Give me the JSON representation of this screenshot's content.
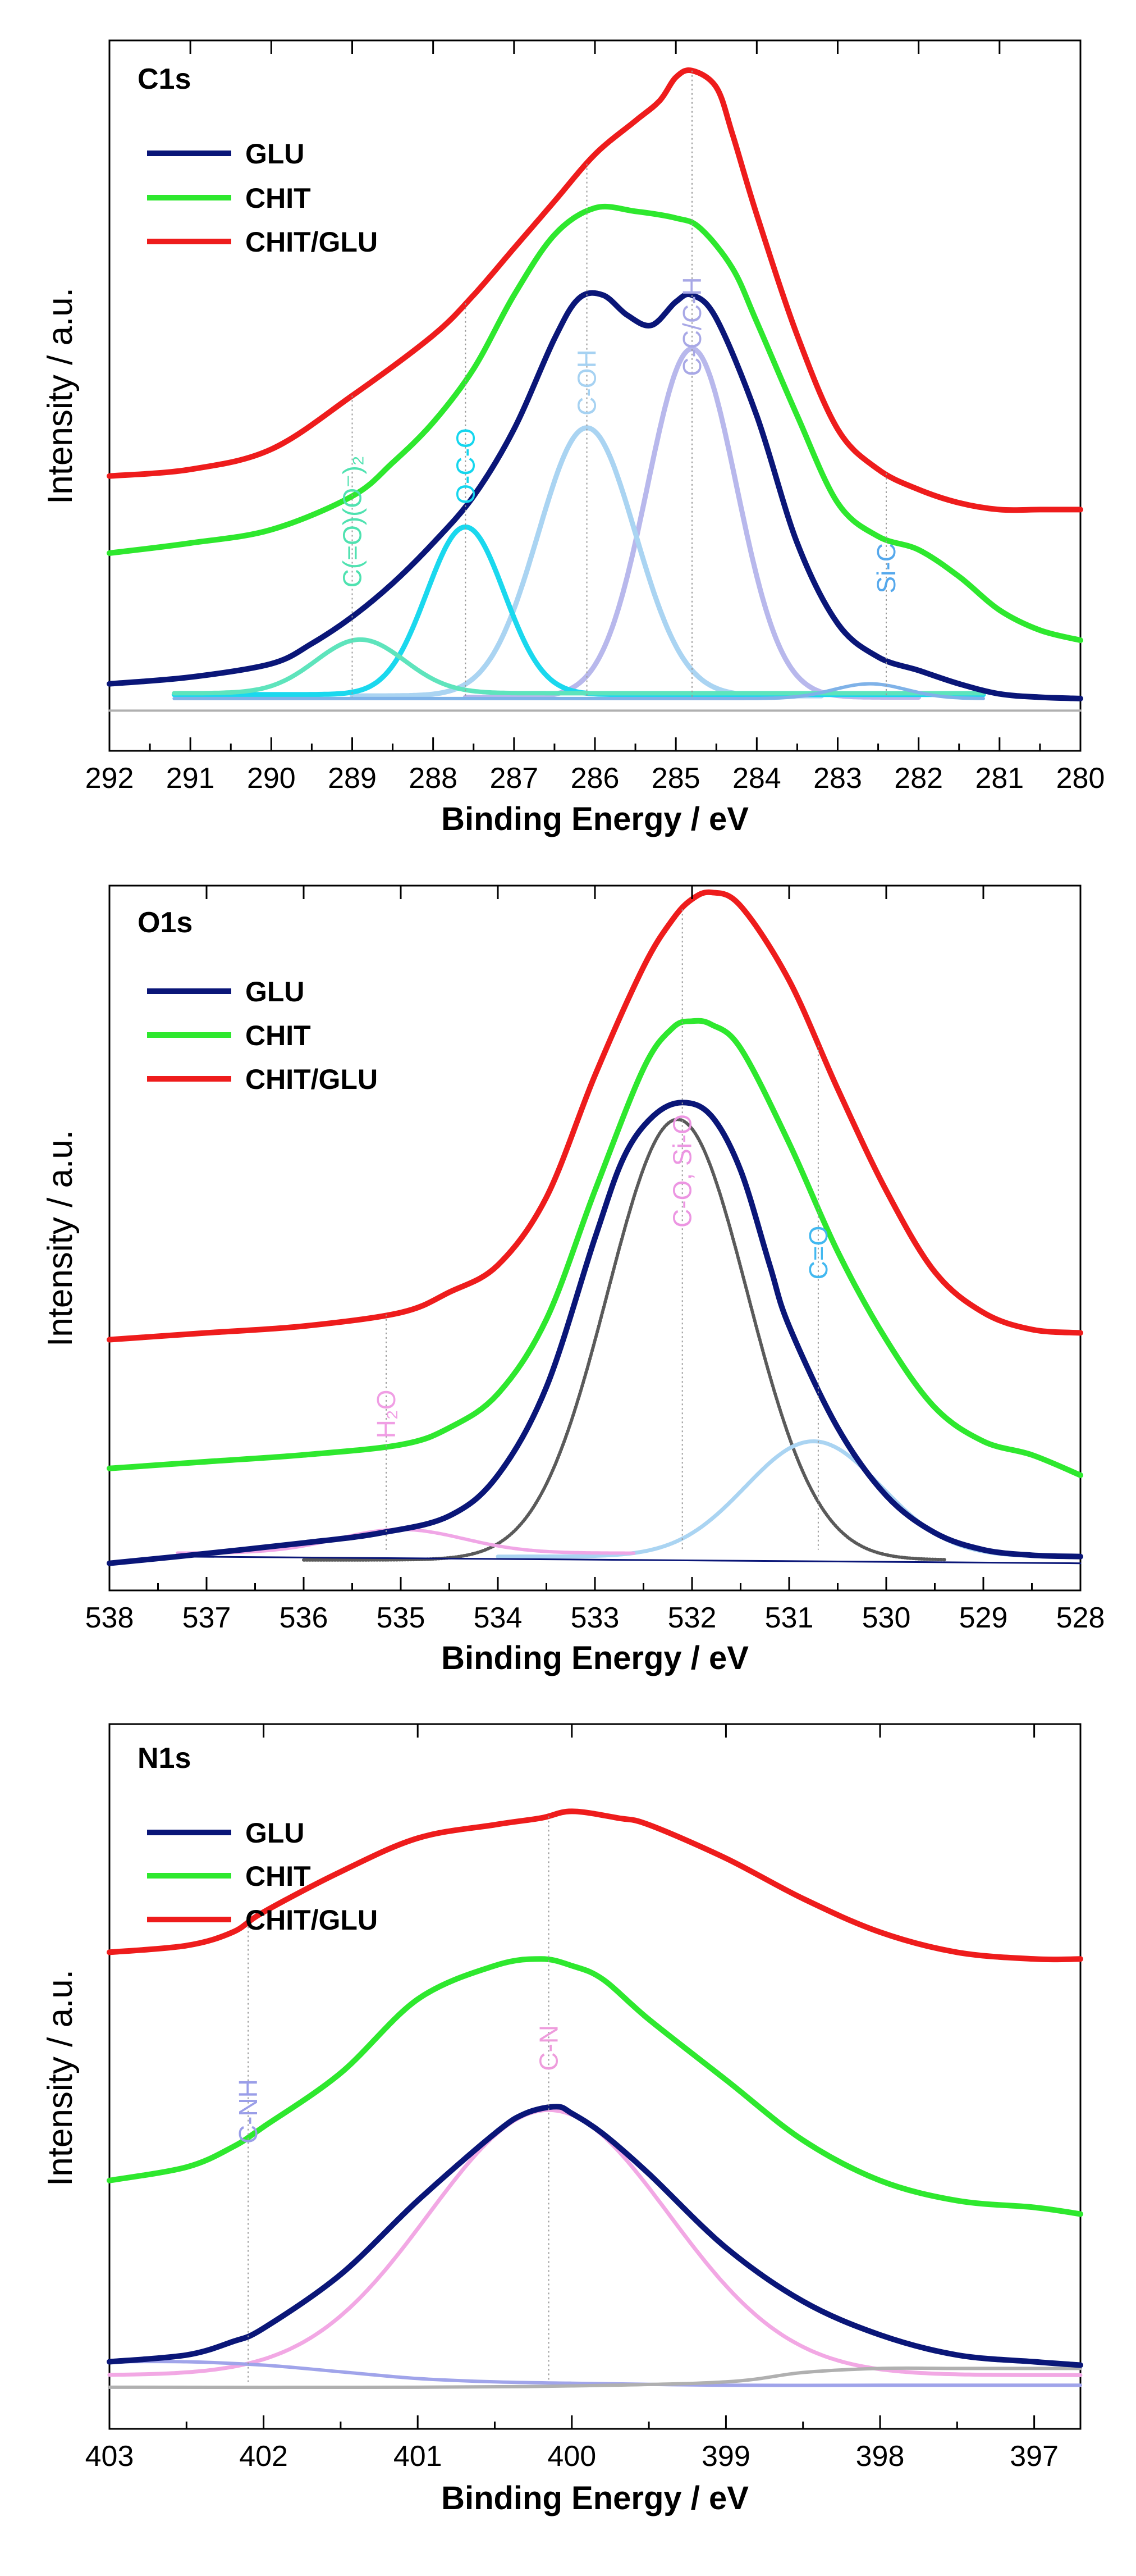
{
  "colors": {
    "glu": "#0a1678",
    "chit": "#2ee82e",
    "chit_glu": "#ee1c1c",
    "baseline_grey": "#b0b0b0"
  },
  "chart_data": [
    {
      "type": "line",
      "title": "C1s",
      "xlabel": "Binding Energy / eV",
      "ylabel": "Intensity / a.u.",
      "xlim": [
        292,
        280
      ],
      "ylim": [
        -0.06,
        1.0
      ],
      "x_ticks": [
        "292",
        "291",
        "290",
        "289",
        "288",
        "287",
        "286",
        "285",
        "284",
        "283",
        "282",
        "281",
        "280"
      ],
      "legend": [
        {
          "name": "GLU",
          "color": "#0a1678"
        },
        {
          "name": "CHIT",
          "color": "#2ee82e"
        },
        {
          "name": "CHIT/GLU",
          "color": "#ee1c1c"
        }
      ],
      "series": [
        {
          "name": "GLU",
          "color": "#0a1678",
          "width": 10,
          "x": [
            292,
            291,
            290,
            289.5,
            289,
            288.5,
            288,
            287.5,
            287,
            286.5,
            286.2,
            285.9,
            285.6,
            285.3,
            285,
            284.8,
            284.5,
            284,
            283.5,
            283,
            282.5,
            282,
            281.5,
            281,
            280.5,
            280
          ],
          "y": [
            0.04,
            0.05,
            0.07,
            0.1,
            0.14,
            0.19,
            0.25,
            0.32,
            0.42,
            0.555,
            0.615,
            0.62,
            0.59,
            0.575,
            0.61,
            0.62,
            0.585,
            0.44,
            0.25,
            0.13,
            0.08,
            0.06,
            0.04,
            0.025,
            0.02,
            0.018
          ]
        },
        {
          "name": "CHIT",
          "color": "#2ee82e",
          "width": 10,
          "x": [
            292,
            291,
            290,
            289,
            288.5,
            288,
            287.5,
            287,
            286.5,
            286,
            285.5,
            285,
            284.7,
            284.3,
            284,
            283.5,
            283,
            282.5,
            282,
            281.5,
            281,
            280.5,
            280
          ],
          "y": [
            0.235,
            0.25,
            0.27,
            0.32,
            0.37,
            0.43,
            0.51,
            0.62,
            0.71,
            0.75,
            0.745,
            0.735,
            0.72,
            0.66,
            0.58,
            0.44,
            0.31,
            0.26,
            0.24,
            0.2,
            0.15,
            0.12,
            0.105
          ]
        },
        {
          "name": "CHIT/GLU",
          "color": "#ee1c1c",
          "width": 10,
          "x": [
            292,
            291,
            290,
            289,
            288,
            287.5,
            287,
            286.5,
            286,
            285.5,
            285.2,
            285,
            284.8,
            284.5,
            284.3,
            284,
            283.5,
            283,
            282.5,
            282,
            281.5,
            281,
            280.5,
            280
          ],
          "y": [
            0.35,
            0.36,
            0.39,
            0.47,
            0.56,
            0.62,
            0.69,
            0.76,
            0.83,
            0.88,
            0.91,
            0.945,
            0.955,
            0.93,
            0.86,
            0.74,
            0.56,
            0.42,
            0.36,
            0.33,
            0.31,
            0.3,
            0.3,
            0.3
          ]
        },
        {
          "name": "C-C/C-H",
          "color": "#b8b8ec",
          "width": 9,
          "shape": "gaussian",
          "center": 284.8,
          "height": 0.52,
          "sigma": 0.55,
          "offset": 0.02,
          "range": [
            287.6,
            282.0
          ]
        },
        {
          "name": "C-OH",
          "color": "#aad4f2",
          "width": 9,
          "shape": "gaussian",
          "center": 286.1,
          "height": 0.4,
          "sigma": 0.6,
          "offset": 0.022,
          "range": [
            289.0,
            283.2
          ]
        },
        {
          "name": "O-C-O",
          "color": "#1ad8ee",
          "width": 9,
          "shape": "gaussian",
          "center": 287.6,
          "height": 0.25,
          "sigma": 0.48,
          "offset": 0.024,
          "range": [
            291.2,
            281.2
          ]
        },
        {
          "name": "C(=O)(O-)2",
          "color": "#5ee4bc",
          "width": 8,
          "shape": "gaussian",
          "center": 288.9,
          "height": 0.08,
          "sigma": 0.55,
          "offset": 0.026,
          "range": [
            291.2,
            281.2
          ]
        },
        {
          "name": "Si-C",
          "color": "#7fb2e8",
          "width": 6,
          "shape": "gaussian",
          "center": 282.6,
          "height": 0.022,
          "sigma": 0.45,
          "offset": 0.018,
          "range": [
            291.2,
            281.2
          ]
        },
        {
          "name": "background",
          "color": "#b0b0b0",
          "width": 4,
          "x": [
            292,
            280
          ],
          "y": [
            0.0,
            0.0
          ]
        }
      ],
      "annotations": [
        {
          "text": "C(=O)(O-)2",
          "display": "C(=O)(O⁻)₂",
          "x": 289.0,
          "color": "#4fe2b0",
          "guide": true
        },
        {
          "text": "O-C-O",
          "x": 287.6,
          "color": "#14d6ee",
          "guide": true
        },
        {
          "text": "C-OH",
          "x": 286.1,
          "color": "#a6d2f2",
          "guide": true
        },
        {
          "text": "C-C/C-H",
          "x": 284.8,
          "color": "#a8a8e6",
          "guide": true
        },
        {
          "text": "Si-C",
          "x": 282.4,
          "color": "#55a8ec",
          "guide": true
        }
      ]
    },
    {
      "type": "line",
      "title": "O1s",
      "xlabel": "Binding Energy / eV",
      "ylabel": "Intensity / a.u.",
      "xlim": [
        538,
        528
      ],
      "ylim": [
        -0.04,
        1.0
      ],
      "x_ticks": [
        "538",
        "537",
        "536",
        "535",
        "534",
        "533",
        "532",
        "531",
        "530",
        "529",
        "528"
      ],
      "legend": [
        {
          "name": "GLU",
          "color": "#0a1678"
        },
        {
          "name": "CHIT",
          "color": "#2ee82e"
        },
        {
          "name": "CHIT/GLU",
          "color": "#ee1c1c"
        }
      ],
      "series": [
        {
          "name": "GLU",
          "color": "#0a1678",
          "width": 10,
          "x": [
            538,
            537.3,
            536,
            535.2,
            534.5,
            534,
            533.5,
            533,
            532.7,
            532.4,
            532.1,
            531.8,
            531.5,
            531.2,
            531,
            530.5,
            530,
            529.5,
            529,
            528.5,
            528
          ],
          "y": [
            0.0,
            0.01,
            0.03,
            0.045,
            0.07,
            0.13,
            0.26,
            0.48,
            0.6,
            0.66,
            0.68,
            0.66,
            0.58,
            0.44,
            0.35,
            0.2,
            0.1,
            0.045,
            0.02,
            0.012,
            0.01
          ]
        },
        {
          "name": "CHIT",
          "color": "#2ee82e",
          "width": 10,
          "x": [
            538,
            537,
            536,
            535,
            534.5,
            534,
            533.5,
            533,
            532.5,
            532.2,
            532,
            531.8,
            531.5,
            531,
            530.5,
            530,
            529.5,
            529,
            528.5,
            528
          ],
          "y": [
            0.14,
            0.15,
            0.16,
            0.175,
            0.2,
            0.25,
            0.36,
            0.55,
            0.73,
            0.79,
            0.8,
            0.795,
            0.76,
            0.62,
            0.46,
            0.33,
            0.23,
            0.18,
            0.16,
            0.13
          ]
        },
        {
          "name": "CHIT/GLU",
          "color": "#ee1c1c",
          "width": 10,
          "x": [
            538,
            537,
            536,
            535,
            534.5,
            534,
            533.5,
            533,
            532.5,
            532.2,
            532,
            531.8,
            531.5,
            531,
            530.5,
            530,
            529.5,
            529,
            528.5,
            528
          ],
          "y": [
            0.33,
            0.34,
            0.35,
            0.37,
            0.4,
            0.44,
            0.54,
            0.72,
            0.88,
            0.95,
            0.98,
            0.99,
            0.97,
            0.86,
            0.7,
            0.55,
            0.43,
            0.37,
            0.345,
            0.34
          ]
        },
        {
          "name": "C-O, Si-O",
          "color": "#5a5a5a",
          "width": 6,
          "shape": "gaussian",
          "center": 532.15,
          "height": 0.65,
          "sigma": 0.72,
          "offset": 0.005,
          "range": [
            536.0,
            529.4
          ],
          "dashed": true
        },
        {
          "name": "C=O",
          "color": "#aad4f2",
          "width": 7,
          "shape": "gaussian",
          "center": 530.75,
          "height": 0.17,
          "sigma": 0.7,
          "offset": 0.01,
          "range": [
            534.0,
            528.0
          ]
        },
        {
          "name": "H2O",
          "color": "#f0a6e6",
          "width": 6,
          "shape": "gaussian",
          "center": 535.0,
          "height": 0.035,
          "sigma": 0.65,
          "offset": 0.015,
          "range": [
            537.3,
            532.6
          ]
        },
        {
          "name": "background",
          "color": "#0a1678",
          "width": 3,
          "x": [
            537.3,
            528
          ],
          "y": [
            0.01,
            0.0
          ]
        }
      ],
      "annotations": [
        {
          "text": "H2O",
          "display": "H₂O",
          "x": 535.15,
          "color": "#f09ee4",
          "guide": true
        },
        {
          "text": "C-O, Si-O",
          "x": 532.1,
          "color": "#ec96e2",
          "guide": true
        },
        {
          "text": "C=O",
          "x": 530.7,
          "color": "#42b8f0",
          "guide": true
        }
      ]
    },
    {
      "type": "line",
      "title": "N1s",
      "xlabel": "Binding Energy / eV",
      "ylabel": "Intensity / a.u.",
      "xlim": [
        403,
        396.7
      ],
      "ylim": [
        -0.05,
        1.0
      ],
      "x_ticks": [
        "403",
        "402",
        "401",
        "400",
        "399",
        "398",
        "397"
      ],
      "tick_values": [
        403,
        402,
        401,
        400,
        399,
        398,
        397
      ],
      "legend": [
        {
          "name": "GLU",
          "color": "#0a1678"
        },
        {
          "name": "CHIT",
          "color": "#2ee82e"
        },
        {
          "name": "CHIT/GLU",
          "color": "#ee1c1c"
        }
      ],
      "series": [
        {
          "name": "GLU",
          "color": "#0a1678",
          "width": 10,
          "x": [
            403,
            402.5,
            402.2,
            402,
            401.5,
            401,
            400.5,
            400.3,
            400.1,
            400,
            399.8,
            399.5,
            399,
            398.5,
            398,
            397.5,
            397,
            396.7
          ],
          "y": [
            0.05,
            0.06,
            0.08,
            0.1,
            0.18,
            0.29,
            0.39,
            0.42,
            0.43,
            0.42,
            0.39,
            0.33,
            0.22,
            0.14,
            0.09,
            0.06,
            0.05,
            0.045
          ]
        },
        {
          "name": "CHIT",
          "color": "#2ee82e",
          "width": 10,
          "x": [
            403,
            402.5,
            402.2,
            402,
            401.5,
            401,
            400.5,
            400.2,
            400,
            399.8,
            399.5,
            399,
            398.5,
            398,
            397.5,
            397,
            396.7
          ],
          "y": [
            0.32,
            0.34,
            0.37,
            0.4,
            0.48,
            0.59,
            0.64,
            0.65,
            0.64,
            0.62,
            0.56,
            0.47,
            0.38,
            0.32,
            0.29,
            0.28,
            0.27
          ]
        },
        {
          "name": "CHIT/GLU",
          "color": "#ee1c1c",
          "width": 10,
          "x": [
            403,
            402.5,
            402.2,
            402,
            401.5,
            401,
            400.5,
            400.2,
            400,
            399.7,
            399.5,
            399,
            398.5,
            398,
            397.5,
            397,
            396.7
          ],
          "y": [
            0.66,
            0.67,
            0.69,
            0.72,
            0.78,
            0.83,
            0.85,
            0.86,
            0.87,
            0.86,
            0.85,
            0.8,
            0.74,
            0.69,
            0.66,
            0.65,
            0.65
          ]
        },
        {
          "name": "C-N",
          "color": "#f2a8e4",
          "width": 7,
          "shape": "gaussian",
          "center": 400.15,
          "height": 0.395,
          "sigma": 0.78,
          "offset": 0.03,
          "range": [
            403.0,
            396.7
          ]
        },
        {
          "name": "C-NH",
          "color": "#a0a4ea",
          "width": 6,
          "x": [
            403,
            402.5,
            402,
            401.5,
            401,
            400.5,
            400,
            399,
            398,
            397,
            396.7
          ],
          "y": [
            0.05,
            0.05,
            0.045,
            0.035,
            0.025,
            0.02,
            0.018,
            0.015,
            0.015,
            0.015,
            0.015
          ]
        },
        {
          "name": "background",
          "color": "#b0b0b0",
          "width": 6,
          "x": [
            403,
            401,
            400,
            399,
            398.5,
            398,
            397.5,
            397,
            396.7
          ],
          "y": [
            0.012,
            0.012,
            0.014,
            0.02,
            0.034,
            0.04,
            0.04,
            0.04,
            0.04
          ]
        }
      ],
      "annotations": [
        {
          "text": "C-NH",
          "x": 402.1,
          "color": "#9a9ee8",
          "guide": true
        },
        {
          "text": "C-N",
          "x": 400.15,
          "color": "#ee9cdc",
          "guide": true
        }
      ]
    }
  ]
}
